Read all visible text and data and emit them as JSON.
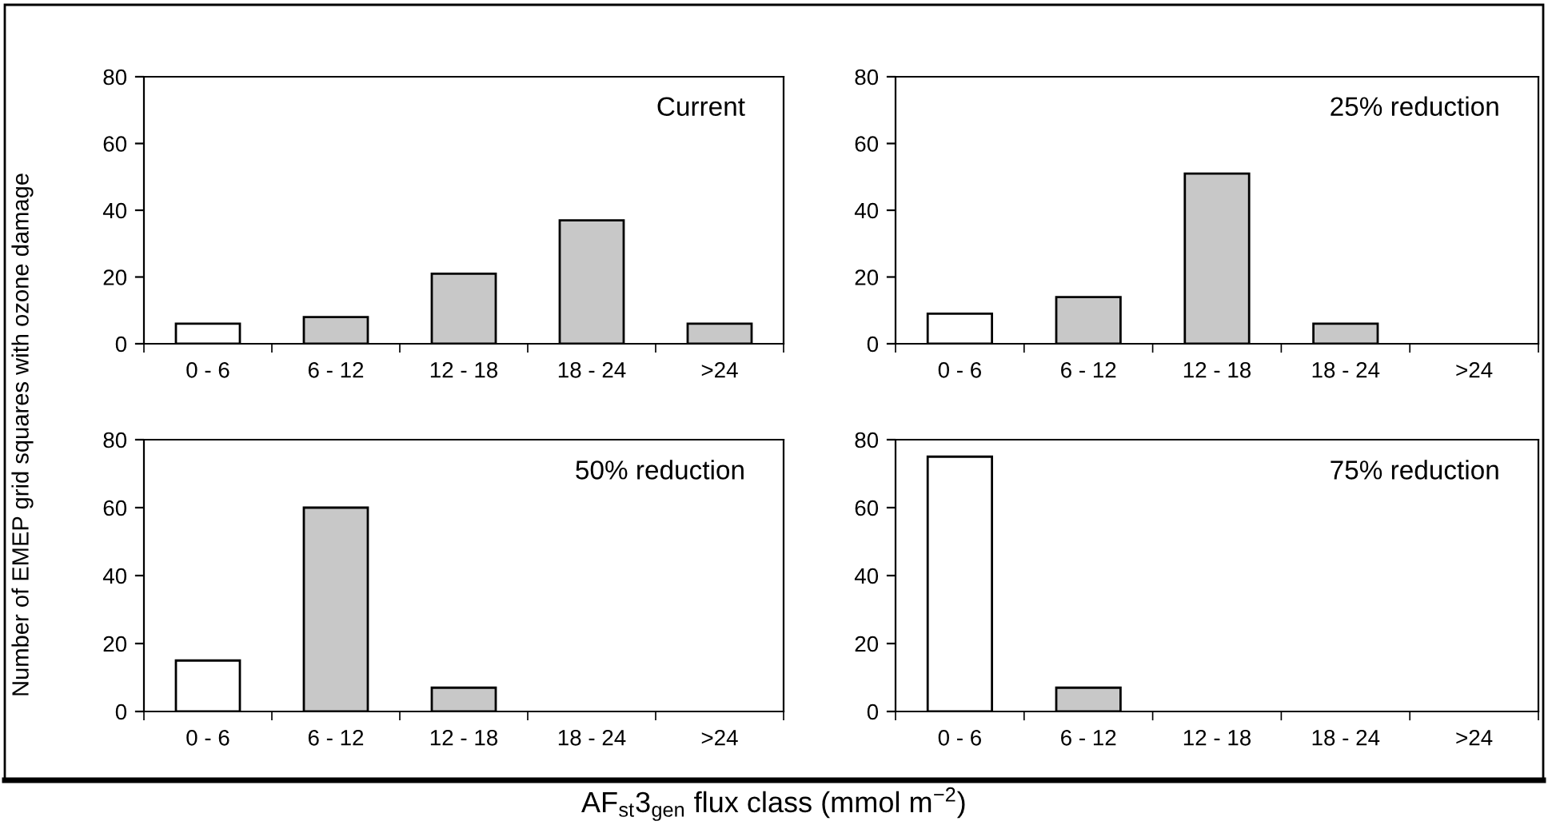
{
  "chart_data": [
    {
      "type": "bar",
      "categories": [
        "0 - 6",
        "6 - 12",
        "12 - 18",
        "18 - 24",
        ">24"
      ],
      "values": [
        6,
        8,
        21,
        37,
        6
      ],
      "colors": [
        "#ffffff",
        "#c8c8c8",
        "#c8c8c8",
        "#c8c8c8",
        "#c8c8c8"
      ],
      "ylim": [
        0,
        80
      ],
      "yticks": [
        0,
        20,
        40,
        60,
        80
      ],
      "grid": false,
      "annotations": [
        "Current"
      ],
      "ylabel": "Number of EMEP grid squares with ozone damage"
    },
    {
      "type": "bar",
      "categories": [
        "0 - 6",
        "6 - 12",
        "12 - 18",
        "18 - 24",
        ">24"
      ],
      "values": [
        9,
        14,
        51,
        6,
        0
      ],
      "colors": [
        "#ffffff",
        "#c8c8c8",
        "#c8c8c8",
        "#c8c8c8",
        "#c8c8c8"
      ],
      "ylim": [
        0,
        80
      ],
      "yticks": [
        0,
        20,
        40,
        60,
        80
      ],
      "grid": false,
      "annotations": [
        "25% reduction"
      ]
    },
    {
      "type": "bar",
      "categories": [
        "0 - 6",
        "6 - 12",
        "12 - 18",
        "18 - 24",
        ">24"
      ],
      "values": [
        15,
        60,
        7,
        0,
        0
      ],
      "colors": [
        "#ffffff",
        "#c8c8c8",
        "#c8c8c8",
        "#c8c8c8",
        "#c8c8c8"
      ],
      "ylim": [
        0,
        80
      ],
      "yticks": [
        0,
        20,
        40,
        60,
        80
      ],
      "grid": false,
      "annotations": [
        "50% reduction"
      ],
      "xlabel": "AF$_{st}$3$_{gen}$ flux class (mmol m$^{−2}$)"
    },
    {
      "type": "bar",
      "categories": [
        "0 - 6",
        "6 - 12",
        "12 - 18",
        "18 - 24",
        ">24"
      ],
      "values": [
        75,
        7,
        0,
        0,
        0
      ],
      "colors": [
        "#ffffff",
        "#c8c8c8",
        "#c8c8c8",
        "#c8c8c8",
        "#c8c8c8"
      ],
      "ylim": [
        0,
        80
      ],
      "yticks": [
        0,
        20,
        40,
        60,
        80
      ],
      "grid": false,
      "annotations": [
        "75% reduction"
      ]
    }
  ]
}
